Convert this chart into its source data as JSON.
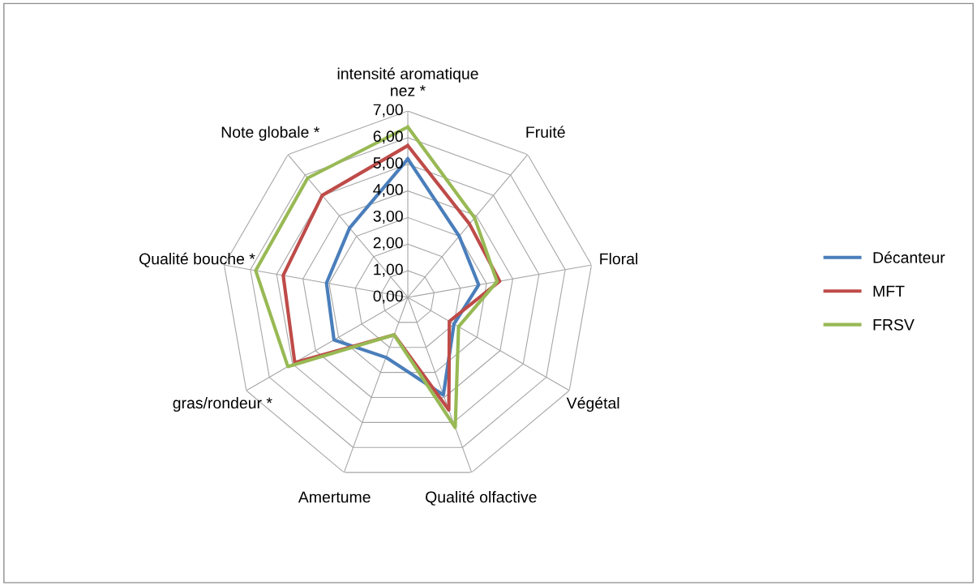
{
  "chart_data": {
    "type": "radar",
    "categories": [
      "intensité aromatique\nnez *",
      "Fruité",
      "Floral",
      "Végétal",
      "Qualité olfactive",
      "Amertume",
      "gras/rondeur *",
      "Qualité bouche *",
      "Note globale *"
    ],
    "series": [
      {
        "name": "Décanteur",
        "color": "#4a7ebb",
        "values": [
          5.2,
          3.0,
          2.7,
          2.0,
          3.9,
          2.4,
          3.2,
          3.1,
          3.4
        ]
      },
      {
        "name": "MFT",
        "color": "#be4b48",
        "values": [
          5.7,
          3.6,
          3.5,
          1.8,
          4.5,
          1.5,
          4.9,
          4.75,
          5.0
        ]
      },
      {
        "name": "FRSV",
        "color": "#98b954",
        "values": [
          6.4,
          3.9,
          3.4,
          2.2,
          5.2,
          1.5,
          5.2,
          5.8,
          5.85
        ]
      }
    ],
    "ylim": [
      0,
      7
    ],
    "yticks": [
      {
        "value": 0,
        "label": "0,00"
      },
      {
        "value": 1,
        "label": "1,00"
      },
      {
        "value": 2,
        "label": "2,00"
      },
      {
        "value": 3,
        "label": "3,00"
      },
      {
        "value": 4,
        "label": "4,00"
      },
      {
        "value": 5,
        "label": "5,00"
      },
      {
        "value": 6,
        "label": "6,00"
      },
      {
        "value": 7,
        "label": "7,00"
      }
    ],
    "grid": true,
    "legend": "right",
    "line_style": "solid",
    "marker": "none"
  }
}
